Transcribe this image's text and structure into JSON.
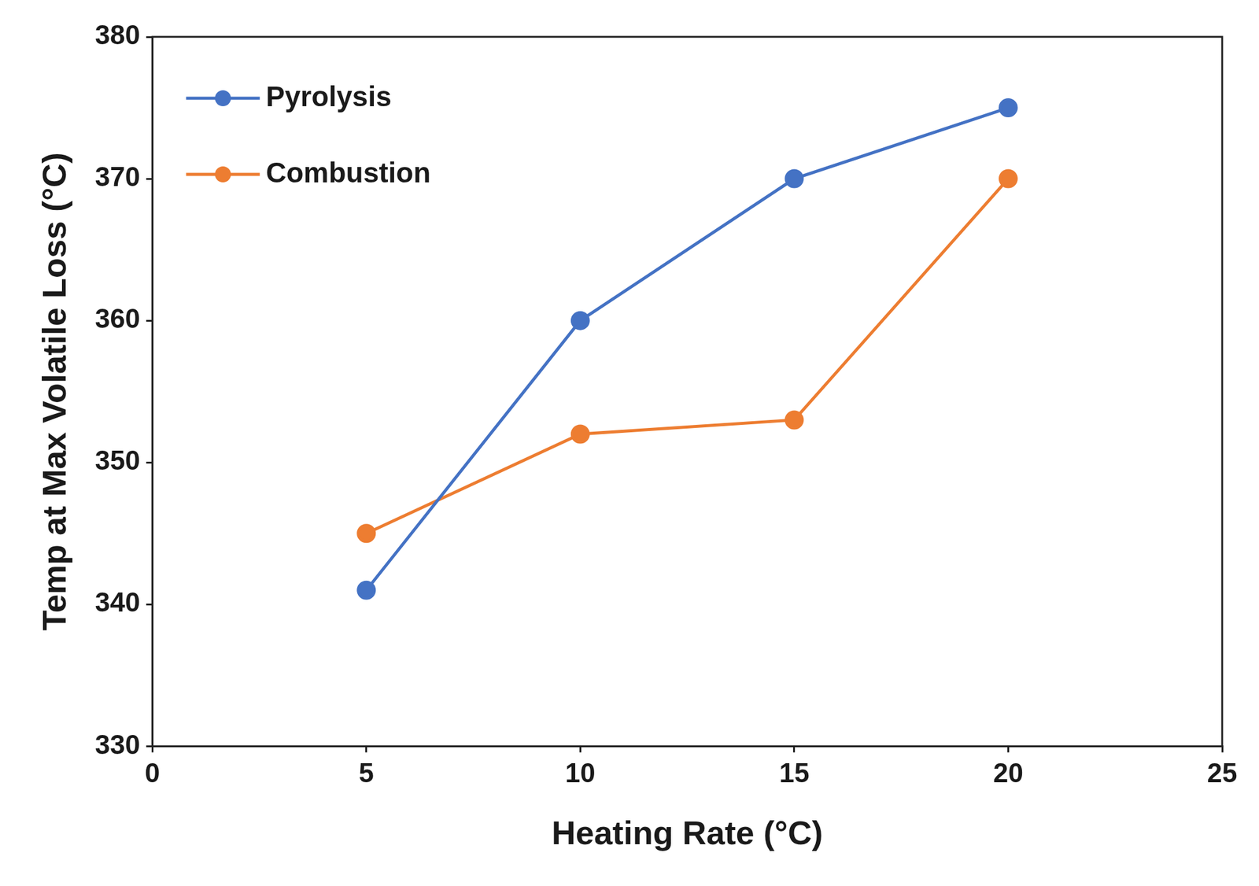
{
  "chart_data": {
    "type": "line",
    "x_label": "Heating Rate (°C)",
    "y_label": "Temp at Max Volatile Loss (°C)",
    "x": [
      5,
      10,
      15,
      20
    ],
    "series": [
      {
        "name": "Pyrolysis",
        "color": "#4472c4",
        "marker": "circle",
        "values": [
          341,
          360,
          370,
          375
        ]
      },
      {
        "name": "Combustion",
        "color": "#ed7d31",
        "marker": "circle",
        "values": [
          345,
          352,
          353,
          370
        ]
      }
    ],
    "xlim": [
      0,
      25
    ],
    "xticks": [
      0,
      5,
      10,
      15,
      20,
      25
    ],
    "ylim": [
      330,
      380
    ],
    "yticks": [
      330,
      340,
      350,
      360,
      370,
      380
    ],
    "grid": false,
    "legend": "upper left"
  }
}
